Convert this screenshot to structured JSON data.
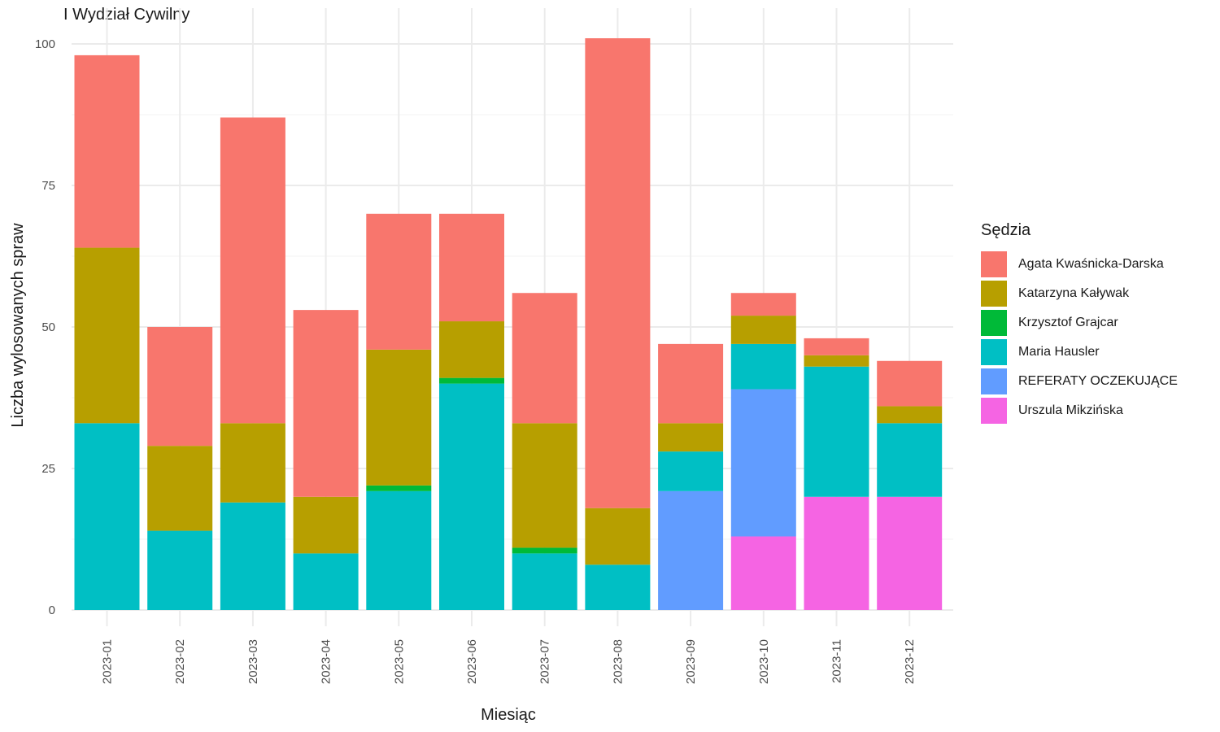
{
  "chart_data": {
    "type": "bar",
    "stacked": true,
    "title": "I Wydział Cywilny",
    "xlabel": "Miesiąc",
    "ylabel": "Liczba wylosowanych spraw",
    "ylim": [
      0,
      105
    ],
    "yticks": [
      0,
      25,
      50,
      75,
      100
    ],
    "grid": true,
    "legend_position": "right",
    "legend_title": "Sędzia",
    "categories": [
      "2023-01",
      "2023-02",
      "2023-03",
      "2023-04",
      "2023-05",
      "2023-06",
      "2023-07",
      "2023-08",
      "2023-09",
      "2023-10",
      "2023-11",
      "2023-12"
    ],
    "series": [
      {
        "name": "Urszula Mikzińska",
        "color": "#F564E3",
        "values": [
          0,
          0,
          0,
          0,
          0,
          0,
          0,
          0,
          0,
          13,
          20,
          20
        ]
      },
      {
        "name": "REFERATY OCZEKUJĄCE",
        "color": "#619CFF",
        "values": [
          0,
          0,
          0,
          0,
          0,
          0,
          0,
          0,
          21,
          26,
          0,
          0
        ]
      },
      {
        "name": "Maria Hausler",
        "color": "#00BFC4",
        "values": [
          33,
          14,
          19,
          10,
          21,
          40,
          10,
          8,
          7,
          8,
          23,
          13
        ]
      },
      {
        "name": "Krzysztof Grajcar",
        "color": "#00BA38",
        "values": [
          0,
          0,
          0,
          0,
          1,
          1,
          1,
          0,
          0,
          0,
          0,
          0
        ]
      },
      {
        "name": "Katarzyna Kaływak",
        "color": "#B79F00",
        "values": [
          31,
          15,
          14,
          10,
          24,
          10,
          22,
          10,
          5,
          5,
          2,
          3
        ]
      },
      {
        "name": "Agata Kwaśnicka-Darska",
        "color": "#F8766D",
        "values": [
          34,
          21,
          54,
          33,
          24,
          19,
          23,
          83,
          14,
          4,
          3,
          8
        ]
      }
    ]
  },
  "legend_order": [
    "Agata Kwaśnicka-Darska",
    "Katarzyna Kaływak",
    "Krzysztof Grajcar",
    "Maria Hausler",
    "REFERATY OCZEKUJĄCE",
    "Urszula Mikzińska"
  ]
}
